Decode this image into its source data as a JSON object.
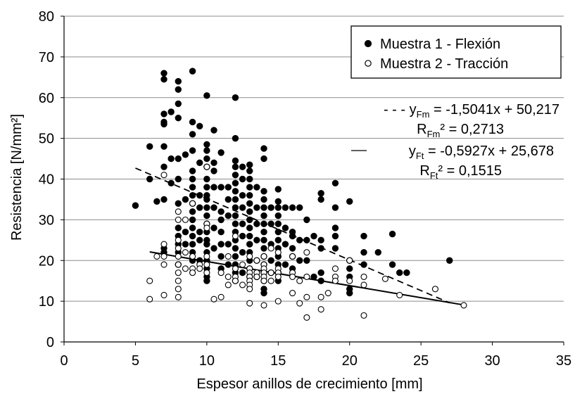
{
  "chart_data": {
    "type": "scatter",
    "title": "",
    "xlabel": "Espesor anillos de crecimiento [mm]",
    "ylabel": "Resistencia [N/mm²]",
    "xlim": [
      0,
      35
    ],
    "ylim": [
      0,
      80
    ],
    "xticks": [
      "0",
      "5",
      "10",
      "15",
      "20",
      "25",
      "30",
      "35"
    ],
    "yticks": [
      "0",
      "10",
      "20",
      "30",
      "40",
      "50",
      "60",
      "70",
      "80"
    ],
    "grid": "horizontal",
    "legend_position": "top-right",
    "series": [
      {
        "name": "Muestra 1 - Flexión",
        "marker": "filled-circle",
        "color": "#000000",
        "points": [
          [
            5,
            33.5
          ],
          [
            6,
            48
          ],
          [
            6,
            40
          ],
          [
            6.5,
            34.5
          ],
          [
            7,
            66
          ],
          [
            7,
            64.5
          ],
          [
            7,
            56
          ],
          [
            7,
            54
          ],
          [
            7,
            53.5
          ],
          [
            7,
            48
          ],
          [
            7,
            43
          ],
          [
            7,
            35
          ],
          [
            7,
            23
          ],
          [
            7,
            22
          ],
          [
            7.5,
            56.5
          ],
          [
            7.5,
            45
          ],
          [
            7.5,
            39
          ],
          [
            8,
            64
          ],
          [
            8,
            62
          ],
          [
            8,
            58.5
          ],
          [
            8,
            55
          ],
          [
            8,
            45
          ],
          [
            8,
            40
          ],
          [
            8,
            34
          ],
          [
            8,
            28
          ],
          [
            8,
            26
          ],
          [
            8,
            24
          ],
          [
            8,
            22
          ],
          [
            8,
            19
          ],
          [
            8.5,
            46
          ],
          [
            8.5,
            35
          ],
          [
            8.5,
            27
          ],
          [
            8.5,
            24
          ],
          [
            9,
            66.5
          ],
          [
            9,
            54
          ],
          [
            9,
            51
          ],
          [
            9,
            47
          ],
          [
            9,
            42
          ],
          [
            9,
            40
          ],
          [
            9,
            38
          ],
          [
            9,
            36
          ],
          [
            9,
            34
          ],
          [
            9,
            32
          ],
          [
            9,
            30
          ],
          [
            9,
            28
          ],
          [
            9,
            26
          ],
          [
            9,
            24
          ],
          [
            9,
            22
          ],
          [
            9,
            20
          ],
          [
            9.5,
            53
          ],
          [
            9.5,
            44
          ],
          [
            9.5,
            36
          ],
          [
            9.5,
            33
          ],
          [
            9.5,
            27
          ],
          [
            9.5,
            25
          ],
          [
            9.5,
            20
          ],
          [
            10,
            60.5
          ],
          [
            10,
            48.5
          ],
          [
            10,
            47
          ],
          [
            10,
            45
          ],
          [
            10,
            43
          ],
          [
            10,
            40
          ],
          [
            10,
            38
          ],
          [
            10,
            36
          ],
          [
            10,
            35
          ],
          [
            10,
            33
          ],
          [
            10,
            31
          ],
          [
            10,
            29
          ],
          [
            10,
            27
          ],
          [
            10,
            25
          ],
          [
            10,
            24
          ],
          [
            10,
            22
          ],
          [
            10,
            20
          ],
          [
            10,
            18
          ],
          [
            10,
            16
          ],
          [
            10,
            15
          ],
          [
            10.5,
            52
          ],
          [
            10.5,
            44
          ],
          [
            10.5,
            42
          ],
          [
            10.5,
            38
          ],
          [
            10.5,
            33
          ],
          [
            10.5,
            28
          ],
          [
            10.5,
            23
          ],
          [
            11,
            46.5
          ],
          [
            11,
            38
          ],
          [
            11,
            32
          ],
          [
            11,
            30
          ],
          [
            11,
            27
          ],
          [
            11,
            24
          ],
          [
            11,
            21
          ],
          [
            11,
            18
          ],
          [
            11.5,
            38
          ],
          [
            11.5,
            35
          ],
          [
            11.5,
            31
          ],
          [
            11.5,
            24
          ],
          [
            11.5,
            19
          ],
          [
            12,
            60
          ],
          [
            12,
            50
          ],
          [
            12,
            44.5
          ],
          [
            12,
            43
          ],
          [
            12,
            41
          ],
          [
            12,
            39
          ],
          [
            12,
            37
          ],
          [
            12,
            35
          ],
          [
            12,
            33
          ],
          [
            12,
            31
          ],
          [
            12,
            29
          ],
          [
            12,
            27
          ],
          [
            12,
            25
          ],
          [
            12,
            23
          ],
          [
            12,
            21
          ],
          [
            12,
            19
          ],
          [
            12,
            17
          ],
          [
            12,
            15
          ],
          [
            12.5,
            43
          ],
          [
            12.5,
            40
          ],
          [
            12.5,
            36
          ],
          [
            12.5,
            33
          ],
          [
            12.5,
            29
          ],
          [
            12.5,
            26
          ],
          [
            12.5,
            22
          ],
          [
            12.5,
            17
          ],
          [
            13,
            43.5
          ],
          [
            13,
            42
          ],
          [
            13,
            40
          ],
          [
            13,
            38
          ],
          [
            13,
            36
          ],
          [
            13,
            34
          ],
          [
            13,
            32
          ],
          [
            13,
            30
          ],
          [
            13,
            28
          ],
          [
            13,
            26
          ],
          [
            13,
            24
          ],
          [
            13,
            22
          ],
          [
            13,
            20
          ],
          [
            13,
            18
          ],
          [
            13,
            16
          ],
          [
            13.5,
            38
          ],
          [
            13.5,
            33
          ],
          [
            13.5,
            29
          ],
          [
            13.5,
            25
          ],
          [
            13.5,
            20
          ],
          [
            13.5,
            16
          ],
          [
            14,
            47.5
          ],
          [
            14,
            45
          ],
          [
            14,
            37
          ],
          [
            14,
            35
          ],
          [
            14,
            33
          ],
          [
            14,
            31
          ],
          [
            14,
            29
          ],
          [
            14,
            27
          ],
          [
            14,
            25
          ],
          [
            14,
            23
          ],
          [
            14,
            21
          ],
          [
            14,
            19
          ],
          [
            14,
            17
          ],
          [
            14,
            15
          ],
          [
            14,
            13
          ],
          [
            14,
            12
          ],
          [
            14.5,
            33
          ],
          [
            14.5,
            29
          ],
          [
            14.5,
            24
          ],
          [
            14.5,
            20
          ],
          [
            14.5,
            17
          ],
          [
            15,
            37.5
          ],
          [
            15,
            34.5
          ],
          [
            15,
            33
          ],
          [
            15,
            31
          ],
          [
            15,
            29
          ],
          [
            15,
            27
          ],
          [
            15,
            25
          ],
          [
            15,
            23
          ],
          [
            15,
            21
          ],
          [
            15,
            19
          ],
          [
            15,
            17
          ],
          [
            15,
            15
          ],
          [
            15.5,
            33
          ],
          [
            15.5,
            28
          ],
          [
            15.5,
            24
          ],
          [
            15.5,
            19
          ],
          [
            16,
            33
          ],
          [
            16,
            27
          ],
          [
            16,
            26
          ],
          [
            16,
            23
          ],
          [
            16,
            21
          ],
          [
            16,
            18
          ],
          [
            16.5,
            33
          ],
          [
            16.5,
            25
          ],
          [
            16.5,
            20
          ],
          [
            17,
            30
          ],
          [
            17,
            25
          ],
          [
            17,
            20
          ],
          [
            17.5,
            26
          ],
          [
            17.5,
            16
          ],
          [
            18,
            36.5
          ],
          [
            18,
            35
          ],
          [
            18,
            25
          ],
          [
            18,
            23
          ],
          [
            18,
            17
          ],
          [
            18,
            15
          ],
          [
            19,
            39
          ],
          [
            19,
            33
          ],
          [
            19,
            28
          ],
          [
            19,
            26
          ],
          [
            19,
            23
          ],
          [
            20,
            34.5
          ],
          [
            20,
            20
          ],
          [
            20,
            18
          ],
          [
            20,
            16
          ],
          [
            20,
            13
          ],
          [
            20,
            12
          ],
          [
            21,
            26
          ],
          [
            21,
            22
          ],
          [
            21,
            19
          ],
          [
            22,
            22
          ],
          [
            23,
            26.5
          ],
          [
            23,
            19
          ],
          [
            23.5,
            17
          ],
          [
            24,
            17
          ],
          [
            27,
            20
          ]
        ]
      },
      {
        "name": "Muestra 2 - Tracción",
        "marker": "open-circle",
        "color": "#000000",
        "points": [
          [
            6,
            15
          ],
          [
            6,
            10.5
          ],
          [
            6.5,
            21
          ],
          [
            7,
            41
          ],
          [
            7,
            24
          ],
          [
            7,
            21
          ],
          [
            7,
            19
          ],
          [
            7,
            11.5
          ],
          [
            8,
            32
          ],
          [
            8,
            30
          ],
          [
            8,
            25
          ],
          [
            8,
            23
          ],
          [
            8,
            21
          ],
          [
            8,
            19
          ],
          [
            8,
            17
          ],
          [
            8,
            15
          ],
          [
            8,
            13
          ],
          [
            8,
            11
          ],
          [
            8.5,
            30
          ],
          [
            8.5,
            22
          ],
          [
            8.5,
            18
          ],
          [
            9,
            34
          ],
          [
            9,
            21
          ],
          [
            9,
            18
          ],
          [
            9,
            17
          ],
          [
            9.5,
            19
          ],
          [
            9.5,
            18
          ],
          [
            10,
            43
          ],
          [
            10,
            29
          ],
          [
            10,
            28
          ],
          [
            10,
            21
          ],
          [
            10,
            19
          ],
          [
            10,
            17
          ],
          [
            10.5,
            10.5
          ],
          [
            11,
            17
          ],
          [
            11,
            11
          ],
          [
            11.5,
            21
          ],
          [
            11.5,
            16
          ],
          [
            11.5,
            14
          ],
          [
            12,
            26
          ],
          [
            12,
            18
          ],
          [
            12,
            16
          ],
          [
            12,
            15
          ],
          [
            12.5,
            19
          ],
          [
            12.5,
            14
          ],
          [
            13,
            21
          ],
          [
            13,
            18
          ],
          [
            13,
            17
          ],
          [
            13,
            16
          ],
          [
            13,
            15
          ],
          [
            13,
            14
          ],
          [
            13,
            13
          ],
          [
            13,
            9.5
          ],
          [
            13.5,
            20
          ],
          [
            13.5,
            17
          ],
          [
            13.5,
            16
          ],
          [
            14,
            21
          ],
          [
            14,
            19
          ],
          [
            14,
            18
          ],
          [
            14,
            17
          ],
          [
            14,
            16
          ],
          [
            14,
            15
          ],
          [
            14,
            9
          ],
          [
            14.5,
            23
          ],
          [
            14.5,
            17
          ],
          [
            14.5,
            15
          ],
          [
            15,
            22
          ],
          [
            15,
            18
          ],
          [
            15,
            17
          ],
          [
            15,
            16
          ],
          [
            15,
            10
          ],
          [
            16,
            21
          ],
          [
            16,
            17
          ],
          [
            16,
            16
          ],
          [
            16,
            12
          ],
          [
            16.5,
            15
          ],
          [
            16.5,
            9.5
          ],
          [
            17,
            22
          ],
          [
            17,
            16
          ],
          [
            17,
            11
          ],
          [
            17,
            6
          ],
          [
            18,
            11
          ],
          [
            18,
            8
          ],
          [
            18.5,
            12
          ],
          [
            19,
            16
          ],
          [
            19,
            18
          ],
          [
            19,
            15
          ],
          [
            20,
            20
          ],
          [
            20,
            15
          ],
          [
            21,
            16
          ],
          [
            21,
            14
          ],
          [
            21,
            6.5
          ],
          [
            22.5,
            15.5
          ],
          [
            23.5,
            11.5
          ],
          [
            26,
            13
          ],
          [
            28,
            9
          ]
        ]
      }
    ],
    "trendlines": [
      {
        "series": "Muestra 1 - Flexión",
        "style": "dashed",
        "slope": -1.5041,
        "intercept": 50.217,
        "x_range": [
          5,
          27
        ],
        "label_prefix": "- - - ",
        "eq_y": "y",
        "eq_sub": "Fm",
        "eq_rest": " = -1,5041x + 50,217",
        "r2_r": "R",
        "r2_sub": "Fm",
        "r2_rest": "² = 0,2713"
      },
      {
        "series": "Muestra 2 - Tracción",
        "style": "solid",
        "slope": -0.5927,
        "intercept": 25.678,
        "x_range": [
          6,
          28
        ],
        "label_prefix": "",
        "eq_y": "y",
        "eq_sub": "Ft",
        "eq_rest": " = -0,5927x + 25,678",
        "r2_r": "R",
        "r2_sub": "Ft",
        "r2_rest": "² = 0,1515"
      }
    ]
  }
}
